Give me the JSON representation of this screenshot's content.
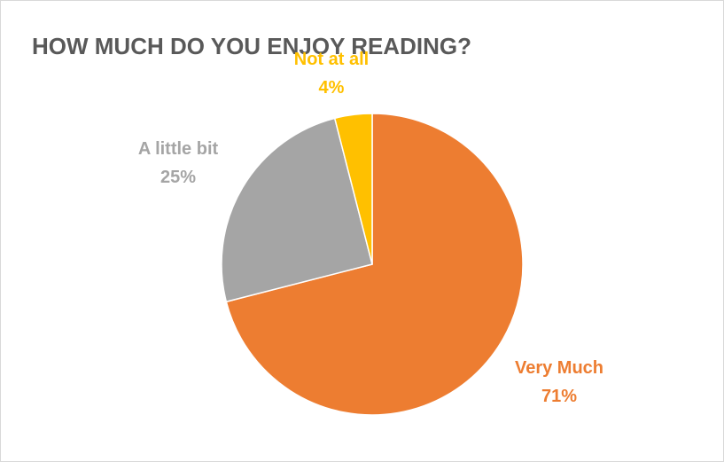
{
  "chart_data": {
    "type": "pie",
    "title": "HOW MUCH DO YOU ENJOY READING?",
    "start_angle_deg": 0,
    "direction": "clockwise",
    "legend": "none",
    "slices": [
      {
        "label": "Very Much",
        "value": 71,
        "value_label": "71%",
        "color": "#ED7D31"
      },
      {
        "label": "A little bit",
        "value": 25,
        "value_label": "25%",
        "color": "#A5A5A5"
      },
      {
        "label": "Not at all",
        "value": 4,
        "value_label": "4%",
        "color": "#FFC000"
      }
    ]
  }
}
